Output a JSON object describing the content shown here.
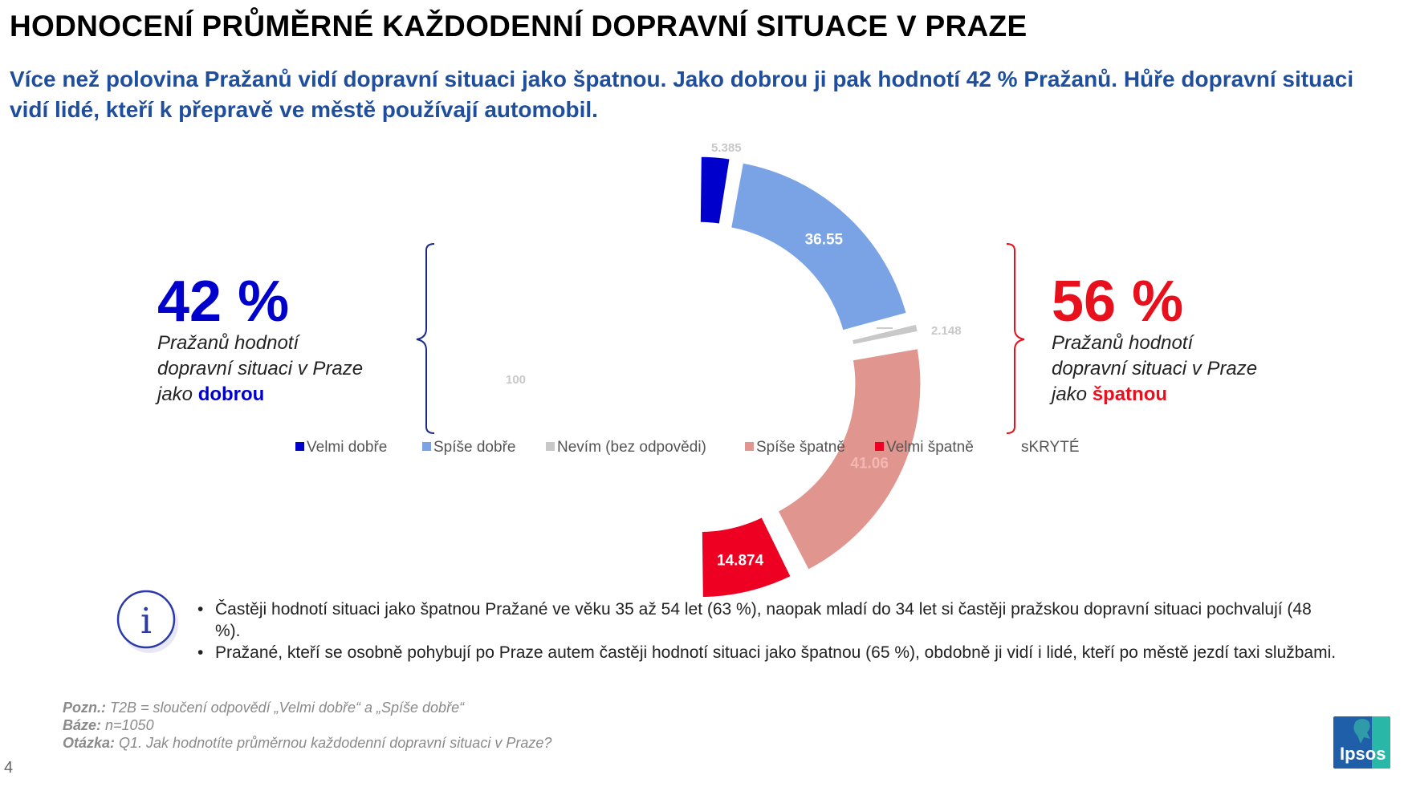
{
  "title": "HODNOCENÍ PRŮMĚRNÉ KAŽDODENNÍ DOPRAVNÍ SITUACE V PRAZE",
  "subtitle": "Více než polovina Pražanů vidí dopravní situaci jako špatnou. Jako dobrou ji pak hodnotí 42 % Pražanů. Hůře dopravní situaci vidí lidé, kteří k přepravě ve městě používají automobil.",
  "left_summary": {
    "value": "42 %",
    "text_prefix": "Pražanů hodnotí dopravní situaci v Praze jako ",
    "text_highlight": "dobrou",
    "color": "#0000cc"
  },
  "right_summary": {
    "value": "56 %",
    "text_prefix": "Pražanů hodnotí dopravní situaci v Praze jako ",
    "text_highlight": "špatnou",
    "color": "#e8101c"
  },
  "chart_data": {
    "type": "pie",
    "variant": "half-donut",
    "series": [
      {
        "name": "Velmi dobře",
        "value": 5.385,
        "label": "5.385",
        "color": "#0000cc"
      },
      {
        "name": "Spíše dobře",
        "value": 36.55,
        "label": "36.55",
        "color": "#7aa3e5"
      },
      {
        "name": "Nevím (bez odpovědi)",
        "value": 2.148,
        "label": "2.148",
        "color": "#c8c8c8"
      },
      {
        "name": "Spíše špatně",
        "value": 41.06,
        "label": "41.06",
        "color": "#e0958f"
      },
      {
        "name": "Velmi špatně",
        "value": 14.874,
        "label": "14.874",
        "color": "#ee0022"
      },
      {
        "name": "sKRYTÉ",
        "value": 100,
        "label": "100",
        "color": "#ffffff"
      }
    ],
    "legend_position": "bottom"
  },
  "info_icon": "info-icon",
  "bullets": [
    "Častěji hodnotí situaci jako špatnou Pražané ve věku 35 až 54 let (63 %), naopak mladí do 34 let si častěji pražskou dopravní situaci pochvalují (48 %).",
    "Pražané, kteří se osobně pohybují po Praze autem častěji hodnotí situaci jako špatnou (65 %), obdobně ji vidí i lidé, kteří po městě jezdí taxi službami."
  ],
  "notes": {
    "pozn_label": "Pozn.:",
    "pozn_text": " T2B = sloučení odpovědí „Velmi dobře“ a „Spíše dobře“",
    "baze_label": "Báze:",
    "baze_text": " n=1050",
    "otazka_label": "Otázka:",
    "otazka_text": " Q1. Jak hodnotíte průměrnou každodenní dopravní situaci v Praze?"
  },
  "page_number": "4",
  "logo_text": "Ipsos"
}
